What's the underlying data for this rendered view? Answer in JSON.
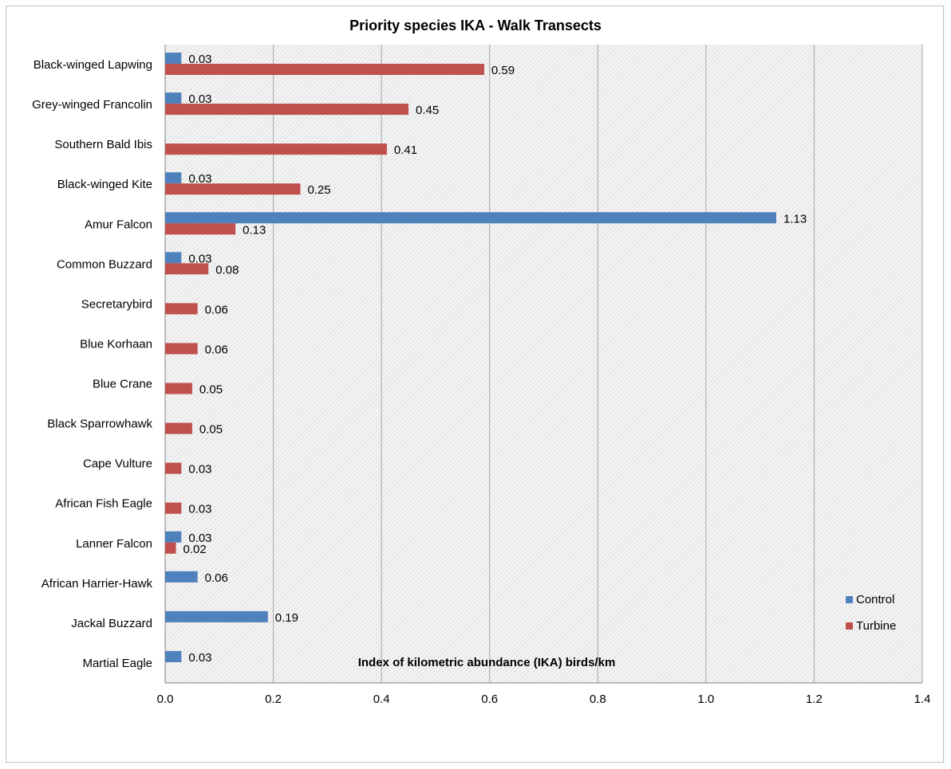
{
  "chart_data": {
    "type": "bar",
    "orientation": "horizontal",
    "title": "Priority species IKA - Walk Transects",
    "xlabel": "Index of kilometric abundance (IKA)  birds/km",
    "ylabel": "",
    "xlim": [
      0,
      1.4
    ],
    "xticks": [
      "0.0",
      "0.2",
      "0.4",
      "0.6",
      "0.8",
      "1.0",
      "1.2",
      "1.4"
    ],
    "grid": "vertical",
    "legend_position": "right",
    "categories": [
      "Black-winged Lapwing",
      "Grey-winged Francolin",
      "Southern Bald Ibis",
      "Black-winged Kite",
      "Amur Falcon",
      "Common Buzzard",
      "Secretarybird",
      "Blue Korhaan",
      "Blue Crane",
      "Black Sparrowhawk",
      "Cape Vulture",
      "African Fish Eagle",
      "Lanner Falcon",
      "African Harrier-Hawk",
      "Jackal Buzzard",
      "Martial Eagle"
    ],
    "series": [
      {
        "name": "Control",
        "color": "#4f81bd",
        "values": [
          0.03,
          0.03,
          null,
          0.03,
          1.13,
          0.03,
          null,
          null,
          null,
          null,
          null,
          null,
          0.03,
          0.06,
          0.19,
          0.03
        ],
        "labels": [
          "0.03",
          "0.03",
          null,
          "0.03",
          "1.13",
          "0.03",
          null,
          null,
          null,
          null,
          null,
          null,
          "0.03",
          "0.06",
          "0.19",
          "0.03"
        ]
      },
      {
        "name": "Turbine",
        "color": "#c0504d",
        "values": [
          0.59,
          0.45,
          0.41,
          0.25,
          0.13,
          0.08,
          0.06,
          0.06,
          0.05,
          0.05,
          0.03,
          0.03,
          0.02,
          null,
          null,
          null
        ],
        "labels": [
          "0.59",
          "0.45",
          "0.41",
          "0.25",
          "0.13",
          "0.08",
          "0.06",
          "0.06",
          "0.05",
          "0.05",
          "0.03",
          "0.03",
          "0.02",
          null,
          null,
          null
        ]
      }
    ]
  }
}
